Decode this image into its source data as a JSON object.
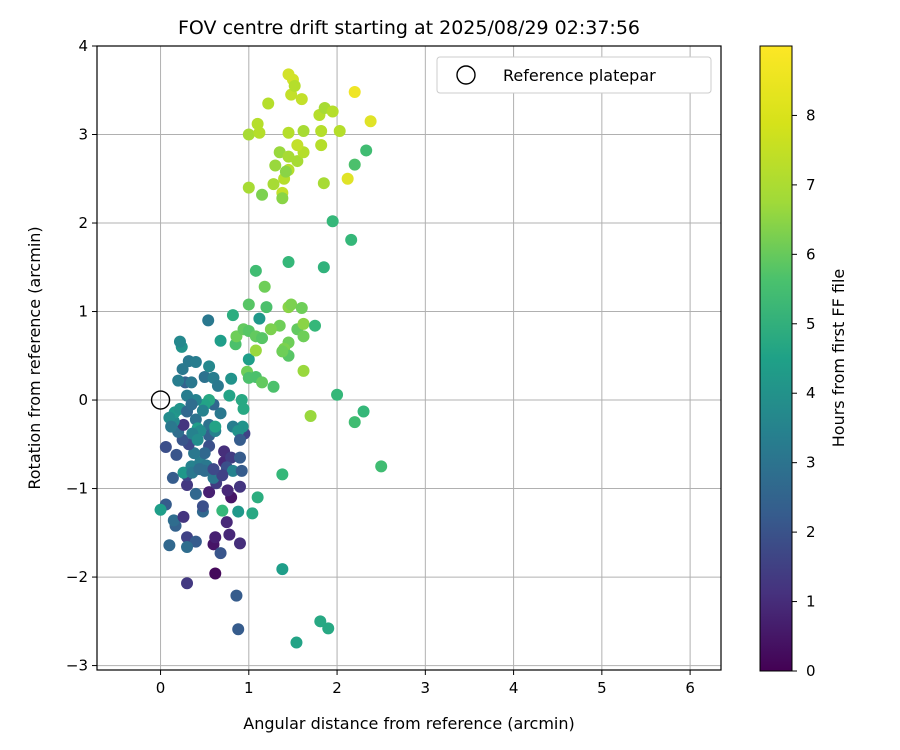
{
  "chart_data": {
    "type": "scatter",
    "title": "FOV centre drift starting at 2025/08/29 02:37:56",
    "xlabel": "Angular distance from reference (arcmin)",
    "ylabel": "Rotation from reference (arcmin)",
    "xlim": [
      -0.72,
      6.35
    ],
    "ylim": [
      -3.05,
      4.0
    ],
    "x_ticks": [
      0,
      1,
      2,
      3,
      4,
      5,
      6
    ],
    "x_tick_labels": [
      "0",
      "1",
      "2",
      "3",
      "4",
      "5",
      "6"
    ],
    "y_ticks": [
      -3,
      -2,
      -1,
      0,
      1,
      2,
      3,
      4
    ],
    "y_tick_labels": [
      "−3",
      "−2",
      "−1",
      "0",
      "1",
      "2",
      "3",
      "4"
    ],
    "grid": true,
    "legend": {
      "placement": "top-right",
      "entries": [
        "Reference platepar"
      ]
    },
    "reference_point": {
      "x": 0.0,
      "y": 0.0
    },
    "colorbar": {
      "label": "Hours from first FF file",
      "colormap": "viridis",
      "range": [
        0,
        9.0
      ],
      "ticks": [
        0,
        1,
        2,
        3,
        4,
        5,
        6,
        7,
        8
      ],
      "tick_labels": [
        "0",
        "1",
        "2",
        "3",
        "4",
        "5",
        "6",
        "7",
        "8"
      ]
    },
    "points": [
      [
        0.62,
        -1.96,
        0.2
      ],
      [
        0.3,
        -2.07,
        1.5
      ],
      [
        0.86,
        -2.21,
        2.6
      ],
      [
        0.88,
        -2.59,
        2.6
      ],
      [
        1.38,
        -1.91,
        5.0
      ],
      [
        1.54,
        -2.74,
        5.2
      ],
      [
        1.81,
        -2.5,
        5.4
      ],
      [
        1.9,
        -2.58,
        5.4
      ],
      [
        0.78,
        -1.52,
        1.0
      ],
      [
        0.9,
        -1.62,
        1.2
      ],
      [
        0.6,
        -1.63,
        0.5
      ],
      [
        0.62,
        -1.55,
        0.8
      ],
      [
        0.68,
        -1.73,
        2.4
      ],
      [
        0.3,
        -1.55,
        1.8
      ],
      [
        0.4,
        -1.6,
        2.6
      ],
      [
        0.1,
        -1.64,
        3.0
      ],
      [
        0.3,
        -1.66,
        3.2
      ],
      [
        0.17,
        -1.42,
        2.8
      ],
      [
        0.15,
        -1.36,
        3.2
      ],
      [
        0.26,
        -1.32,
        1.4
      ],
      [
        0.06,
        -1.18,
        2.6
      ],
      [
        0.0,
        -1.24,
        5.0
      ],
      [
        0.88,
        -1.26,
        4.8
      ],
      [
        1.04,
        -1.28,
        5.4
      ],
      [
        1.1,
        -1.1,
        5.6
      ],
      [
        0.75,
        -1.38,
        1.0
      ],
      [
        0.8,
        -1.1,
        0.5
      ],
      [
        0.76,
        -1.02,
        1.0
      ],
      [
        0.9,
        -0.98,
        1.4
      ],
      [
        0.55,
        -1.04,
        0.8
      ],
      [
        0.63,
        -0.94,
        1.6
      ],
      [
        0.48,
        -1.26,
        3.0
      ],
      [
        0.7,
        -1.25,
        6.0
      ],
      [
        0.48,
        -1.2,
        2.2
      ],
      [
        0.4,
        -1.06,
        3.0
      ],
      [
        0.3,
        -0.96,
        1.5
      ],
      [
        0.3,
        -0.85,
        1.8
      ],
      [
        0.26,
        -0.82,
        4.8
      ],
      [
        0.14,
        -0.88,
        2.6
      ],
      [
        0.35,
        -0.75,
        4.0
      ],
      [
        0.45,
        -0.7,
        3.8
      ],
      [
        0.52,
        -0.74,
        3.6
      ],
      [
        0.5,
        -0.8,
        3.2
      ],
      [
        0.6,
        -0.88,
        3.6
      ],
      [
        0.72,
        -0.7,
        1.0
      ],
      [
        0.72,
        -0.58,
        1.2
      ],
      [
        0.8,
        -0.65,
        1.6
      ],
      [
        0.9,
        -0.65,
        2.6
      ],
      [
        0.75,
        -0.76,
        2.2
      ],
      [
        0.82,
        -0.8,
        4.0
      ],
      [
        0.92,
        -0.8,
        2.6
      ],
      [
        0.95,
        -0.38,
        1.8
      ],
      [
        0.93,
        -0.3,
        4.6
      ],
      [
        0.82,
        -0.3,
        3.8
      ],
      [
        0.55,
        -0.28,
        3.4
      ],
      [
        0.55,
        -0.4,
        2.8
      ],
      [
        0.55,
        -0.52,
        2.2
      ],
      [
        0.5,
        -0.6,
        3.0
      ],
      [
        0.38,
        -0.6,
        3.6
      ],
      [
        0.32,
        -0.5,
        2.0
      ],
      [
        0.25,
        -0.45,
        2.4
      ],
      [
        0.2,
        -0.36,
        3.2
      ],
      [
        0.26,
        -0.28,
        1.4
      ],
      [
        0.15,
        -0.24,
        4.2
      ],
      [
        0.16,
        -0.14,
        4.8
      ],
      [
        0.22,
        -0.1,
        4.6
      ],
      [
        0.3,
        -0.13,
        3.0
      ],
      [
        0.4,
        -0.22,
        3.4
      ],
      [
        0.42,
        -0.32,
        5.0
      ],
      [
        0.45,
        -0.35,
        4.4
      ],
      [
        0.62,
        -0.35,
        4.0
      ],
      [
        0.68,
        -0.15,
        3.6
      ],
      [
        0.6,
        -0.05,
        3.0
      ],
      [
        0.55,
        0.0,
        5.4
      ],
      [
        0.5,
        -0.05,
        5.2
      ],
      [
        0.4,
        0.0,
        4.0
      ],
      [
        0.3,
        0.05,
        3.8
      ],
      [
        0.28,
        0.2,
        2.8
      ],
      [
        0.25,
        0.35,
        3.6
      ],
      [
        0.2,
        0.22,
        3.8
      ],
      [
        0.06,
        -0.53,
        2.2
      ],
      [
        0.35,
        0.2,
        3.6
      ],
      [
        0.5,
        0.26,
        3.4
      ],
      [
        0.6,
        0.25,
        3.8
      ],
      [
        0.65,
        0.16,
        3.6
      ],
      [
        0.55,
        0.38,
        4.2
      ],
      [
        0.32,
        0.44,
        3.6
      ],
      [
        0.4,
        0.43,
        3.8
      ],
      [
        0.24,
        0.6,
        4.6
      ],
      [
        0.22,
        0.66,
        4.2
      ],
      [
        0.54,
        0.9,
        3.6
      ],
      [
        0.68,
        0.67,
        5.0
      ],
      [
        0.8,
        0.24,
        4.6
      ],
      [
        0.78,
        0.05,
        5.2
      ],
      [
        0.92,
        0.0,
        5.4
      ],
      [
        0.94,
        -0.1,
        5.4
      ],
      [
        0.88,
        -0.35,
        4.6
      ],
      [
        0.9,
        -0.45,
        2.6
      ],
      [
        0.7,
        -0.85,
        1.8
      ],
      [
        0.6,
        -0.78,
        2.0
      ],
      [
        0.36,
        -0.38,
        4.0
      ],
      [
        0.42,
        -0.45,
        4.4
      ],
      [
        0.1,
        -0.2,
        4.4
      ],
      [
        0.12,
        -0.3,
        3.6
      ],
      [
        0.18,
        -0.62,
        2.4
      ],
      [
        0.36,
        -0.82,
        3.6
      ],
      [
        0.44,
        -0.78,
        3.2
      ],
      [
        0.62,
        -0.3,
        5.2
      ],
      [
        0.48,
        -0.12,
        4.0
      ],
      [
        0.35,
        -0.05,
        3.2
      ],
      [
        0.82,
        0.96,
        5.6
      ],
      [
        0.85,
        0.63,
        6.4
      ],
      [
        0.86,
        0.72,
        7.0
      ],
      [
        0.94,
        0.8,
        6.8
      ],
      [
        1.0,
        0.78,
        6.6
      ],
      [
        1.08,
        0.72,
        6.8
      ],
      [
        1.15,
        0.7,
        6.6
      ],
      [
        1.12,
        0.92,
        4.8
      ],
      [
        1.0,
        0.46,
        5.0
      ],
      [
        0.98,
        0.32,
        7.0
      ],
      [
        1.0,
        0.25,
        6.4
      ],
      [
        1.08,
        0.26,
        6.4
      ],
      [
        1.15,
        0.2,
        6.8
      ],
      [
        1.28,
        0.15,
        6.4
      ],
      [
        1.0,
        1.08,
        6.6
      ],
      [
        1.2,
        1.05,
        6.4
      ],
      [
        1.18,
        1.28,
        7.0
      ],
      [
        1.35,
        0.84,
        7.0
      ],
      [
        1.45,
        0.65,
        7.0
      ],
      [
        1.4,
        0.58,
        7.2
      ],
      [
        1.45,
        0.5,
        6.6
      ],
      [
        1.38,
        0.55,
        7.0
      ],
      [
        1.45,
        1.05,
        7.4
      ],
      [
        1.48,
        1.08,
        7.2
      ],
      [
        1.6,
        1.04,
        7.0
      ],
      [
        1.55,
        0.8,
        6.8
      ],
      [
        1.62,
        0.72,
        7.0
      ],
      [
        1.62,
        0.86,
        7.4
      ],
      [
        1.75,
        0.84,
        6.0
      ],
      [
        1.62,
        0.33,
        7.6
      ],
      [
        1.7,
        -0.18,
        7.6
      ],
      [
        1.08,
        1.46,
        6.2
      ],
      [
        1.45,
        1.56,
        6.0
      ],
      [
        1.85,
        1.5,
        5.8
      ],
      [
        1.38,
        -0.84,
        6.0
      ],
      [
        2.0,
        0.06,
        6.0
      ],
      [
        2.2,
        -0.25,
        6.2
      ],
      [
        2.3,
        -0.13,
        6.0
      ],
      [
        2.5,
        -0.75,
        6.2
      ],
      [
        1.08,
        0.56,
        7.6
      ],
      [
        1.25,
        0.8,
        7.2
      ],
      [
        1.0,
        2.4,
        7.8
      ],
      [
        1.15,
        2.32,
        7.2
      ],
      [
        1.28,
        2.44,
        7.8
      ],
      [
        1.38,
        2.34,
        8.2
      ],
      [
        1.38,
        2.28,
        7.4
      ],
      [
        1.4,
        2.5,
        8.0
      ],
      [
        1.45,
        2.6,
        8.0
      ],
      [
        1.55,
        2.7,
        7.8
      ],
      [
        1.3,
        2.65,
        7.6
      ],
      [
        1.35,
        2.8,
        7.6
      ],
      [
        1.45,
        2.75,
        7.8
      ],
      [
        1.62,
        2.8,
        8.0
      ],
      [
        1.82,
        2.88,
        8.0
      ],
      [
        1.85,
        2.45,
        7.8
      ],
      [
        2.12,
        2.5,
        8.6
      ],
      [
        2.2,
        2.66,
        6.4
      ],
      [
        2.33,
        2.82,
        6.2
      ],
      [
        2.16,
        1.81,
        6.0
      ],
      [
        1.95,
        2.02,
        6.0
      ],
      [
        1.0,
        3.0,
        7.8
      ],
      [
        1.12,
        3.02,
        8.0
      ],
      [
        1.1,
        3.12,
        8.0
      ],
      [
        1.62,
        3.04,
        7.8
      ],
      [
        1.82,
        3.04,
        8.0
      ],
      [
        2.03,
        3.04,
        8.0
      ],
      [
        1.45,
        3.02,
        8.0
      ],
      [
        1.55,
        2.88,
        8.2
      ],
      [
        1.22,
        3.35,
        8.0
      ],
      [
        1.48,
        3.45,
        8.2
      ],
      [
        1.5,
        3.62,
        8.4
      ],
      [
        1.52,
        3.55,
        8.0
      ],
      [
        1.6,
        3.4,
        8.2
      ],
      [
        1.8,
        3.22,
        8.0
      ],
      [
        1.86,
        3.3,
        7.8
      ],
      [
        1.95,
        3.26,
        8.0
      ],
      [
        2.2,
        3.48,
        8.8
      ],
      [
        2.38,
        3.15,
        8.6
      ],
      [
        1.45,
        3.68,
        8.4
      ],
      [
        1.42,
        2.58,
        7.4
      ]
    ]
  }
}
